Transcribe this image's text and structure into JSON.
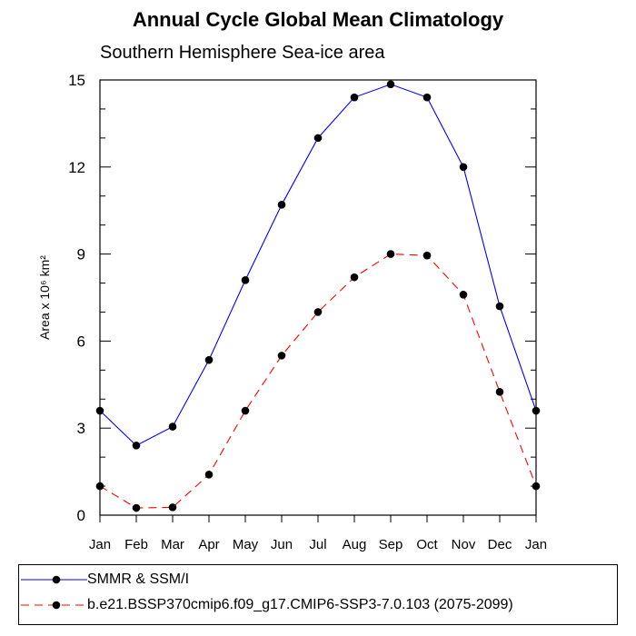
{
  "chart_data": {
    "type": "line",
    "title": "Annual Cycle Global Mean Climatology",
    "subtitle": "Southern Hemisphere Sea-ice area",
    "xlabel": "",
    "ylabel": "Area x 10⁶ km²",
    "categories": [
      "Jan",
      "Feb",
      "Mar",
      "Apr",
      "May",
      "Jun",
      "Jul",
      "Aug",
      "Sep",
      "Oct",
      "Nov",
      "Dec",
      "Jan"
    ],
    "ylim": [
      0,
      15
    ],
    "yticks": [
      0,
      3,
      6,
      9,
      12,
      15
    ],
    "grid": false,
    "legend_position": "bottom",
    "series": [
      {
        "name": "SMMR & SSM/I",
        "color": "#0000ff",
        "line_style": "solid",
        "marker": "filled-circle",
        "values": [
          3.6,
          2.4,
          3.05,
          5.35,
          8.1,
          10.7,
          13.0,
          14.4,
          14.85,
          14.4,
          12.0,
          7.2,
          3.6
        ]
      },
      {
        "name": "b.e21.BSSP370cmip6.f09_g17.CMIP6-SSP3-7.0.103 (2075-2099)",
        "color": "#ff0000",
        "line_style": "dashed",
        "marker": "filled-circle",
        "values": [
          1.0,
          0.25,
          0.27,
          1.4,
          3.6,
          5.5,
          7.0,
          8.2,
          9.0,
          8.95,
          7.6,
          4.25,
          1.0
        ]
      }
    ]
  }
}
